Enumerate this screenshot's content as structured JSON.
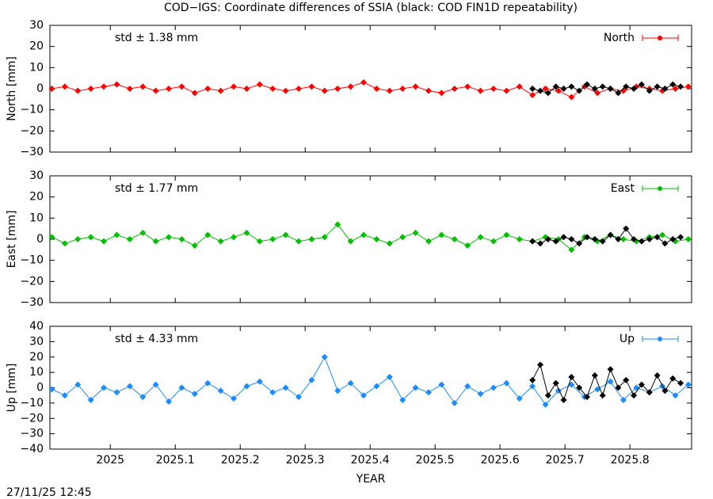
{
  "title": "COD−IGS: Coordinate differences of SSIA (black: COD FIN1D repeatability)",
  "timestamp": "27/11/25 12:45",
  "chart_data": [
    {
      "type": "line",
      "ylabel": "North [mm]",
      "annotation": "std ± 1.38 mm",
      "xlim": [
        2024.907,
        2025.895
      ],
      "ylim": [
        -30,
        30
      ],
      "yticks": [
        {
          "value": -30,
          "label": "−30"
        },
        {
          "value": -20,
          "label": "−20"
        },
        {
          "value": -10,
          "label": "−10"
        },
        0,
        10,
        20,
        30
      ],
      "series": [
        {
          "name": "North",
          "color": "#ff0000",
          "x": [
            2024.91,
            2024.93,
            2024.95,
            2024.97,
            2024.99,
            2025.01,
            2025.03,
            2025.05,
            2025.07,
            2025.09,
            2025.11,
            2025.13,
            2025.15,
            2025.17,
            2025.19,
            2025.21,
            2025.23,
            2025.25,
            2025.27,
            2025.29,
            2025.31,
            2025.33,
            2025.35,
            2025.37,
            2025.39,
            2025.41,
            2025.43,
            2025.45,
            2025.47,
            2025.49,
            2025.51,
            2025.53,
            2025.55,
            2025.57,
            2025.59,
            2025.61,
            2025.63,
            2025.65,
            2025.67,
            2025.69,
            2025.71,
            2025.73,
            2025.75,
            2025.77,
            2025.79,
            2025.81,
            2025.83,
            2025.85,
            2025.87,
            2025.89
          ],
          "values": [
            0,
            1,
            -1,
            0,
            1,
            2,
            0,
            1,
            -1,
            0,
            1,
            -2,
            0,
            -1,
            1,
            0,
            2,
            0,
            -1,
            0,
            1,
            -1,
            0,
            1,
            3,
            0,
            -1,
            0,
            1,
            -1,
            -2,
            0,
            1,
            -1,
            0,
            -1,
            1,
            -3,
            0,
            -1,
            -4,
            1,
            -2,
            0,
            -1,
            1,
            0,
            -1,
            0,
            1
          ]
        },
        {
          "color": "#000000",
          "x": [
            2025.65,
            2025.662,
            2025.674,
            2025.686,
            2025.698,
            2025.71,
            2025.722,
            2025.734,
            2025.746,
            2025.758,
            2025.77,
            2025.782,
            2025.794,
            2025.806,
            2025.818,
            2025.83,
            2025.842,
            2025.854,
            2025.866,
            2025.878
          ],
          "values": [
            0,
            -1,
            -2,
            1,
            0,
            1,
            -1,
            2,
            0,
            1,
            0,
            -2,
            1,
            0,
            2,
            -1,
            1,
            0,
            2,
            1
          ]
        }
      ]
    },
    {
      "type": "line",
      "ylabel": "East [mm]",
      "annotation": "std ± 1.77 mm",
      "xlim": [
        2024.907,
        2025.895
      ],
      "ylim": [
        -30,
        30
      ],
      "yticks": [
        {
          "value": -30,
          "label": "−30"
        },
        {
          "value": -20,
          "label": "−20"
        },
        {
          "value": -10,
          "label": "−10"
        },
        0,
        10,
        20,
        30
      ],
      "series": [
        {
          "name": "East",
          "color": "#00c000",
          "x": [
            2024.91,
            2024.93,
            2024.95,
            2024.97,
            2024.99,
            2025.01,
            2025.03,
            2025.05,
            2025.07,
            2025.09,
            2025.11,
            2025.13,
            2025.15,
            2025.17,
            2025.19,
            2025.21,
            2025.23,
            2025.25,
            2025.27,
            2025.29,
            2025.31,
            2025.33,
            2025.35,
            2025.37,
            2025.39,
            2025.41,
            2025.43,
            2025.45,
            2025.47,
            2025.49,
            2025.51,
            2025.53,
            2025.55,
            2025.57,
            2025.59,
            2025.61,
            2025.63,
            2025.65,
            2025.67,
            2025.69,
            2025.71,
            2025.73,
            2025.75,
            2025.77,
            2025.79,
            2025.81,
            2025.83,
            2025.85,
            2025.87,
            2025.89
          ],
          "values": [
            1,
            -2,
            0,
            1,
            -1,
            2,
            0,
            3,
            -1,
            1,
            0,
            -3,
            2,
            -1,
            1,
            3,
            -1,
            0,
            2,
            -1,
            0,
            1,
            7,
            -1,
            2,
            0,
            -2,
            1,
            3,
            -1,
            2,
            0,
            -3,
            1,
            -1,
            2,
            0,
            -1,
            1,
            0,
            -5,
            1,
            -1,
            2,
            0,
            -1,
            1,
            2,
            -1,
            0
          ]
        },
        {
          "color": "#000000",
          "x": [
            2025.65,
            2025.662,
            2025.674,
            2025.686,
            2025.698,
            2025.71,
            2025.722,
            2025.734,
            2025.746,
            2025.758,
            2025.77,
            2025.782,
            2025.794,
            2025.806,
            2025.818,
            2025.83,
            2025.842,
            2025.854,
            2025.866,
            2025.878
          ],
          "values": [
            -1,
            -2,
            0,
            -1,
            1,
            0,
            -2,
            1,
            0,
            -1,
            2,
            0,
            5,
            0,
            -1,
            0,
            1,
            -2,
            0,
            1
          ]
        }
      ]
    },
    {
      "type": "line",
      "ylabel": "Up [mm]",
      "annotation": "std ± 4.33 mm",
      "xlabel": "YEAR",
      "xlim": [
        2024.907,
        2025.895
      ],
      "ylim": [
        -40,
        40
      ],
      "xticks": [
        2025,
        2025.1,
        2025.2,
        2025.3,
        2025.4,
        2025.5,
        2025.6,
        2025.7,
        2025.8
      ],
      "yticks": [
        {
          "value": -40,
          "label": "−40"
        },
        {
          "value": -30,
          "label": "−30"
        },
        {
          "value": -20,
          "label": "−20"
        },
        {
          "value": -10,
          "label": "−10"
        },
        0,
        10,
        20,
        30,
        40
      ],
      "series": [
        {
          "name": "Up",
          "color": "#1a8cff",
          "x": [
            2024.91,
            2024.93,
            2024.95,
            2024.97,
            2024.99,
            2025.01,
            2025.03,
            2025.05,
            2025.07,
            2025.09,
            2025.11,
            2025.13,
            2025.15,
            2025.17,
            2025.19,
            2025.21,
            2025.23,
            2025.25,
            2025.27,
            2025.29,
            2025.31,
            2025.33,
            2025.35,
            2025.37,
            2025.39,
            2025.41,
            2025.43,
            2025.45,
            2025.47,
            2025.49,
            2025.51,
            2025.53,
            2025.55,
            2025.57,
            2025.59,
            2025.61,
            2025.63,
            2025.65,
            2025.67,
            2025.69,
            2025.71,
            2025.73,
            2025.75,
            2025.77,
            2025.79,
            2025.81,
            2025.83,
            2025.85,
            2025.87,
            2025.89
          ],
          "values": [
            -1,
            -5,
            2,
            -8,
            0,
            -3,
            1,
            -6,
            2,
            -9,
            0,
            -4,
            3,
            -2,
            -7,
            1,
            4,
            -3,
            0,
            -6,
            5,
            20,
            -2,
            3,
            -5,
            1,
            7,
            -8,
            0,
            -3,
            2,
            -10,
            1,
            -4,
            0,
            3,
            -7,
            1,
            -11,
            -2,
            2,
            -6,
            -1,
            4,
            -8,
            0,
            -3,
            1,
            -5,
            2
          ]
        },
        {
          "color": "#000000",
          "x": [
            2025.65,
            2025.662,
            2025.674,
            2025.686,
            2025.698,
            2025.71,
            2025.722,
            2025.734,
            2025.746,
            2025.758,
            2025.77,
            2025.782,
            2025.794,
            2025.806,
            2025.818,
            2025.83,
            2025.842,
            2025.854,
            2025.866,
            2025.878
          ],
          "values": [
            5,
            15,
            -5,
            3,
            -8,
            7,
            0,
            -6,
            8,
            -5,
            12,
            0,
            5,
            -5,
            2,
            -3,
            8,
            -2,
            6,
            3
          ]
        }
      ]
    }
  ]
}
